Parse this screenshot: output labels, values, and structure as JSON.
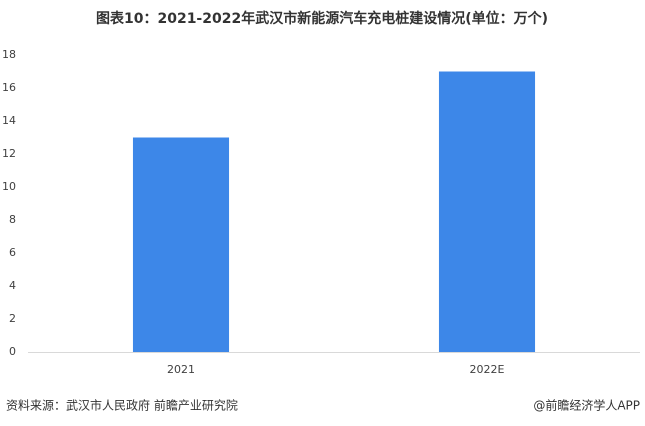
{
  "chart_data": {
    "type": "bar",
    "title": "图表10：2021-2022年武汉市新能源汽车充电桩建设情况(单位：万个)",
    "categories": [
      "2021",
      "2022E"
    ],
    "values": [
      13,
      17
    ],
    "color": "#3d87e8",
    "ylim": [
      0,
      18
    ],
    "yticks": [
      0,
      2,
      4,
      6,
      8,
      10,
      12,
      14,
      16,
      18
    ],
    "grid": false,
    "source": "资料来源：武汉市人民政府 前瞻产业研究院",
    "credit": "@前瞻经济学人APP"
  }
}
